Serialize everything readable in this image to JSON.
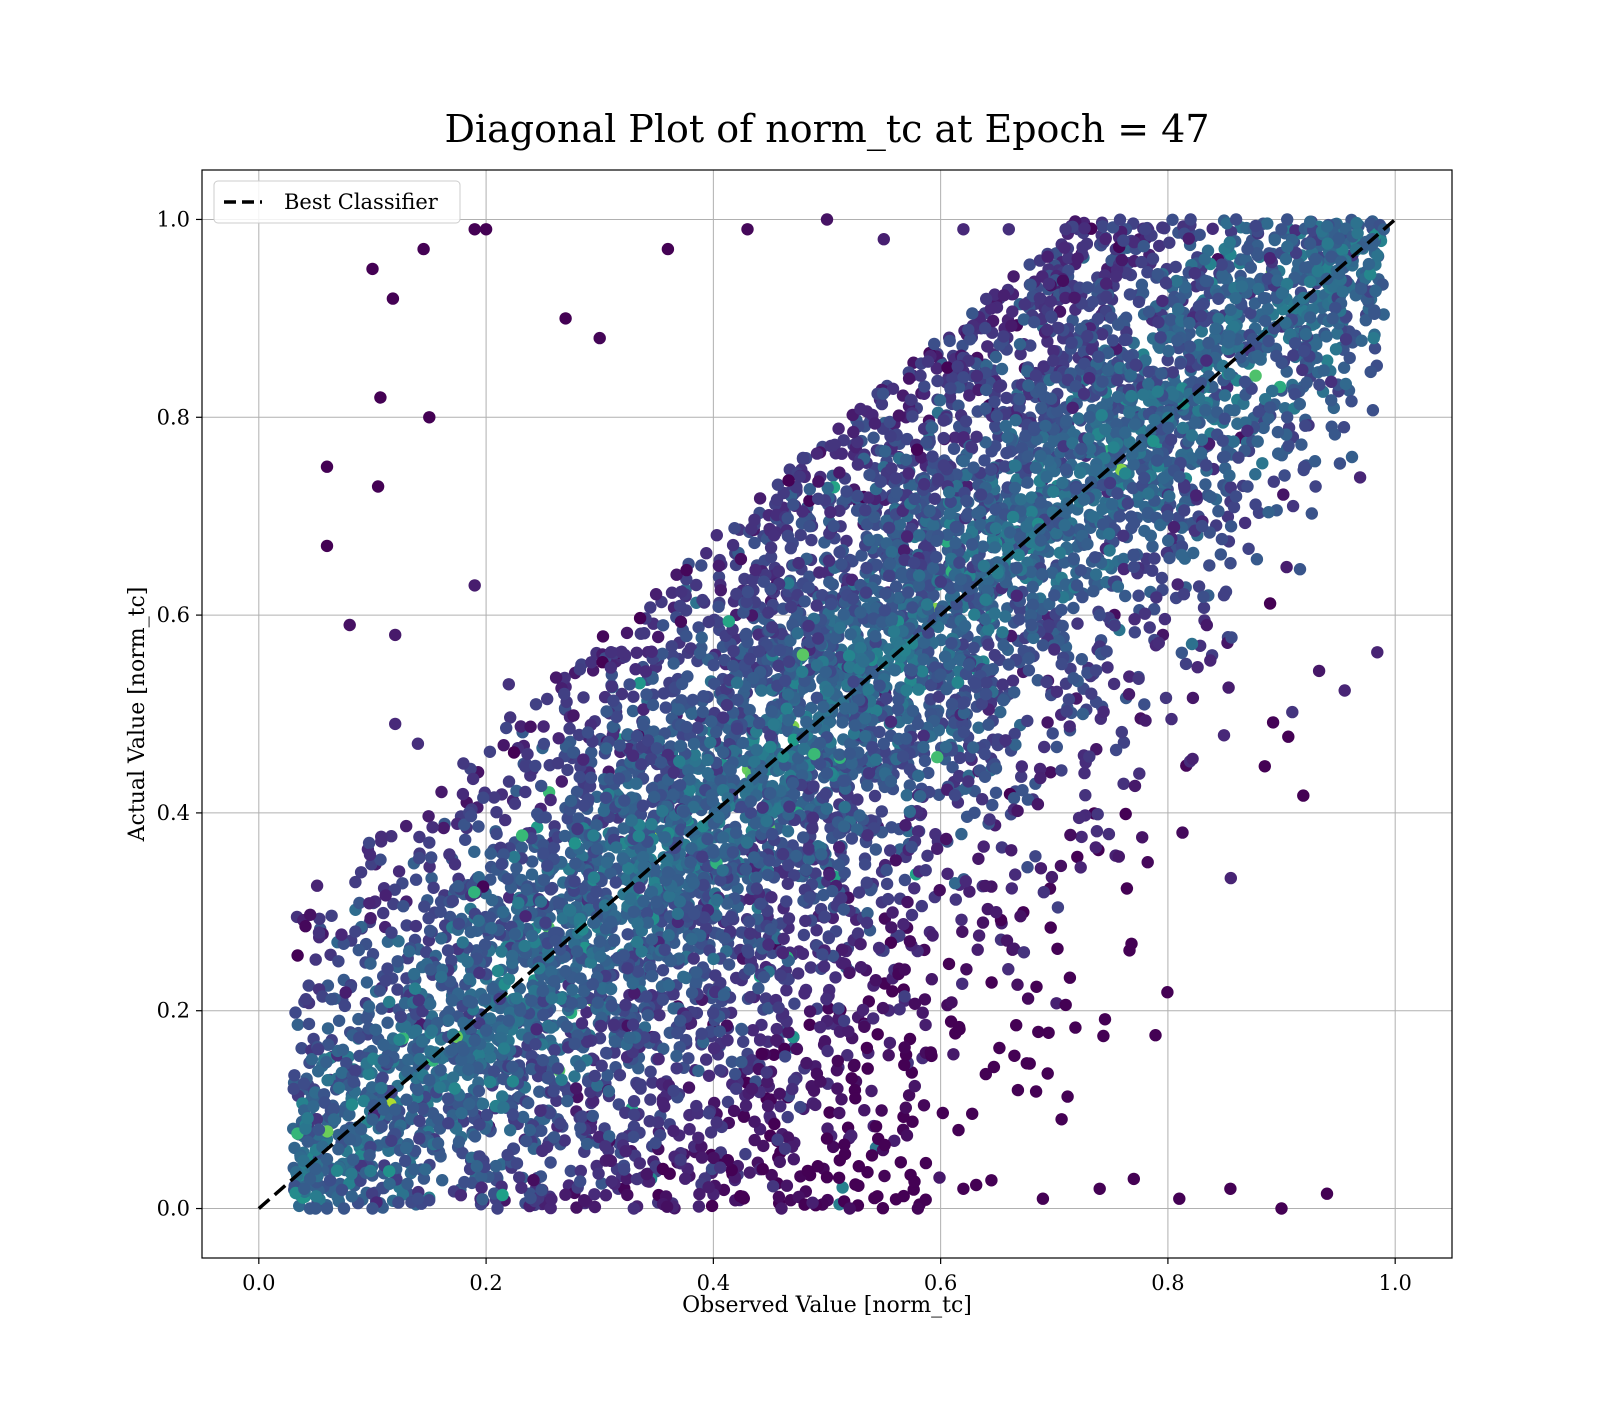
{
  "chart_data": {
    "type": "scatter",
    "title": "Diagonal Plot of norm_tc at Epoch = 47",
    "xlabel": "Observed Value [norm_tc]",
    "ylabel": "Actual Value [norm_tc]",
    "xlim": [
      -0.05,
      1.05
    ],
    "ylim": [
      -0.05,
      1.05
    ],
    "xticks": [
      "0.0",
      "0.2",
      "0.4",
      "0.6",
      "0.8",
      "1.0"
    ],
    "yticks": [
      "0.0",
      "0.2",
      "0.4",
      "0.6",
      "0.8",
      "1.0"
    ],
    "grid": true,
    "legend_position": "top-left",
    "colormap": "viridis",
    "series": [
      {
        "name": "Best Classifier",
        "kind": "line",
        "style": "dashed",
        "color": "#000000",
        "x": [
          0.0,
          1.0
        ],
        "y": [
          0.0,
          1.0
        ]
      }
    ],
    "scatter_points": {
      "x": [
        0.06,
        0.06,
        0.08,
        0.085,
        0.1,
        0.105,
        0.107,
        0.118,
        0.12,
        0.14,
        0.145,
        0.15,
        0.16,
        0.19,
        0.2,
        0.11,
        0.09,
        0.085,
        0.07,
        0.12,
        0.15,
        0.19,
        0.18,
        0.22,
        0.25,
        0.27,
        0.3,
        0.36,
        0.43,
        0.5,
        0.55,
        0.62,
        0.66,
        0.71,
        0.78,
        0.82,
        0.86,
        0.87,
        0.9,
        0.905,
        0.93,
        0.94,
        0.945,
        0.96,
        0.97,
        0.98,
        0.99,
        0.955,
        0.93,
        0.92,
        0.905,
        0.89,
        0.87,
        0.86,
        0.85,
        0.83,
        0.81,
        0.8,
        0.77,
        0.74,
        0.72,
        0.7,
        0.68,
        0.66,
        0.64,
        0.625,
        0.61,
        0.6,
        0.58,
        0.55,
        0.52,
        0.5,
        0.47,
        0.45,
        0.42,
        0.4,
        0.38,
        0.36,
        0.35,
        0.33,
        0.31,
        0.3,
        0.28,
        0.27,
        0.26,
        0.25,
        0.24,
        0.23,
        0.22,
        0.2,
        0.19,
        0.18,
        0.17,
        0.16,
        0.15,
        0.14,
        0.13,
        0.12,
        0.11,
        0.1,
        0.09,
        0.08,
        0.07,
        0.06,
        0.05,
        0.045,
        0.04,
        0.045,
        0.05,
        0.06,
        0.075,
        0.1,
        0.14,
        0.21,
        0.33,
        0.46,
        0.52,
        0.58,
        0.62,
        0.69,
        0.74,
        0.77,
        0.81,
        0.855,
        0.9,
        0.94
      ],
      "y": [
        0.75,
        0.67,
        0.59,
        0.28,
        0.95,
        0.73,
        0.82,
        0.92,
        0.49,
        0.47,
        0.97,
        0.37,
        0.3,
        0.99,
        0.99,
        0.15,
        0.34,
        0.33,
        0.25,
        0.58,
        0.8,
        0.63,
        0.45,
        0.53,
        0.15,
        0.9,
        0.88,
        0.97,
        0.99,
        1.0,
        0.98,
        0.99,
        0.99,
        0.99,
        0.99,
        1.0,
        1.0,
        0.97,
        0.99,
        1.0,
        0.96,
        0.94,
        0.9,
        0.86,
        0.93,
        0.98,
        0.99,
        0.79,
        0.73,
        0.75,
        0.8,
        0.81,
        0.73,
        0.72,
        0.76,
        0.69,
        0.74,
        0.7,
        0.66,
        0.6,
        0.63,
        0.62,
        0.59,
        0.55,
        0.52,
        0.55,
        0.51,
        0.54,
        0.49,
        0.47,
        0.46,
        0.44,
        0.43,
        0.42,
        0.38,
        0.36,
        0.35,
        0.34,
        0.31,
        0.3,
        0.29,
        0.27,
        0.26,
        0.24,
        0.23,
        0.22,
        0.21,
        0.2,
        0.19,
        0.18,
        0.17,
        0.16,
        0.16,
        0.14,
        0.13,
        0.12,
        0.11,
        0.1,
        0.1,
        0.09,
        0.08,
        0.07,
        0.06,
        0.05,
        0.04,
        0.03,
        0.02,
        0.0,
        0.0,
        0.0,
        0.0,
        0.0,
        0.01,
        0.0,
        0.0,
        0.0,
        0.0,
        0.0,
        0.02,
        0.01,
        0.02,
        0.03,
        0.01,
        0.02,
        0.0,
        0.015
      ]
    }
  }
}
